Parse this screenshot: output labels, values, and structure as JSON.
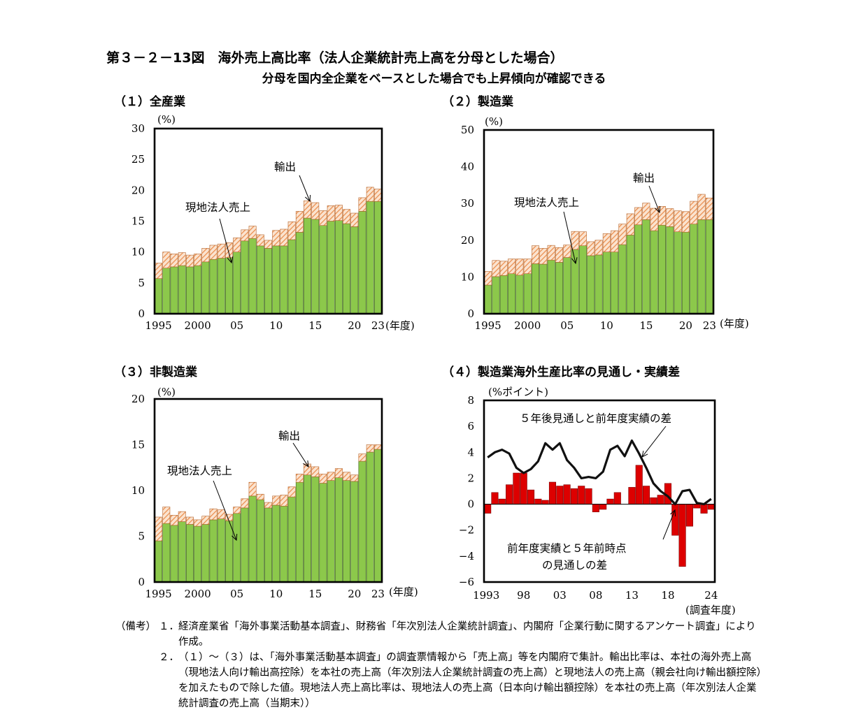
{
  "title": "第３－２－13図　海外売上高比率（法人企業統計売上高を分母とした場合）",
  "subtitle": "分母を国内全企業をベースとした場合でも上昇傾向が確認できる",
  "panels": [
    {
      "title": "（１）全産業",
      "unit": "(%)",
      "xunit": "(年度)"
    },
    {
      "title": "（２）製造業",
      "unit": "(%)",
      "xunit": "(年度)"
    },
    {
      "title": "（３）非製造業",
      "unit": "(%)",
      "xunit": "(年度)"
    },
    {
      "title": "（４）製造業海外生産比率の見通し・実績差",
      "unit": "(%ポイント)",
      "xunit": "(調査年度)"
    }
  ],
  "chart_data": [
    {
      "type": "bar",
      "stacked": true,
      "categories": [
        "1995",
        "96",
        "97",
        "98",
        "99",
        "2000",
        "01",
        "02",
        "03",
        "04",
        "05",
        "06",
        "07",
        "08",
        "09",
        "10",
        "11",
        "12",
        "13",
        "14",
        "15",
        "16",
        "17",
        "18",
        "19",
        "20",
        "21",
        "22",
        "23"
      ],
      "tick_labels": [
        "1995",
        "2000",
        "05",
        "10",
        "15",
        "20",
        "23"
      ],
      "ylim": [
        0,
        30
      ],
      "yticks": [
        0,
        5,
        10,
        15,
        20,
        25,
        30
      ],
      "series": [
        {
          "name": "現地法人売上",
          "color": "#8cc84b",
          "values": [
            5.7,
            7.4,
            7.6,
            7.8,
            7.6,
            7.8,
            8.4,
            8.8,
            9.0,
            9.1,
            10.0,
            11.8,
            12.2,
            11.0,
            10.6,
            11.0,
            11.0,
            12.0,
            13.2,
            15.5,
            15.3,
            14.3,
            15.0,
            15.1,
            14.6,
            14.1,
            16.6,
            18.2,
            18.2
          ]
        },
        {
          "name": "輸出",
          "color": "#f2b98a",
          "values": [
            2.5,
            2.6,
            2.1,
            2.1,
            1.9,
            1.9,
            2.2,
            2.3,
            2.3,
            2.4,
            2.3,
            1.8,
            2.0,
            1.8,
            1.3,
            2.5,
            2.7,
            2.9,
            3.4,
            2.8,
            2.7,
            2.4,
            2.5,
            2.5,
            2.3,
            2.2,
            2.2,
            2.3,
            2.0
          ]
        }
      ],
      "annotations": [
        "輸出",
        "現地法人売上"
      ]
    },
    {
      "type": "bar",
      "stacked": true,
      "categories": [
        "1995",
        "96",
        "97",
        "98",
        "99",
        "2000",
        "01",
        "02",
        "03",
        "04",
        "05",
        "06",
        "07",
        "08",
        "09",
        "10",
        "11",
        "12",
        "13",
        "14",
        "15",
        "16",
        "17",
        "18",
        "19",
        "20",
        "21",
        "22",
        "23"
      ],
      "tick_labels": [
        "1995",
        "2000",
        "05",
        "10",
        "15",
        "20",
        "23"
      ],
      "ylim": [
        0,
        50
      ],
      "yticks": [
        0,
        10,
        20,
        30,
        40,
        50
      ],
      "series": [
        {
          "name": "現地法人売上",
          "color": "#8cc84b",
          "values": [
            7.8,
            10.1,
            10.4,
            10.9,
            10.5,
            10.9,
            13.6,
            13.5,
            14.6,
            14.0,
            15.3,
            17.5,
            18.5,
            15.8,
            16.0,
            16.8,
            16.8,
            18.8,
            21.4,
            24.2,
            25.6,
            22.6,
            24.1,
            23.7,
            22.3,
            22.2,
            24.4,
            25.6,
            25.6
          ]
        },
        {
          "name": "輸出",
          "color": "#f2b98a",
          "values": [
            3.7,
            4.4,
            3.9,
            4.0,
            4.4,
            4.0,
            4.9,
            4.3,
            4.0,
            4.0,
            3.4,
            4.9,
            3.8,
            3.8,
            4.0,
            5.0,
            5.8,
            5.6,
            5.8,
            4.7,
            4.5,
            6.1,
            5.1,
            4.9,
            5.7,
            5.6,
            6.2,
            6.9,
            5.9
          ]
        }
      ],
      "annotations": [
        "輸出",
        "現地法人売上"
      ]
    },
    {
      "type": "bar",
      "stacked": true,
      "categories": [
        "1995",
        "96",
        "97",
        "98",
        "99",
        "2000",
        "01",
        "02",
        "03",
        "04",
        "05",
        "06",
        "07",
        "08",
        "09",
        "10",
        "11",
        "12",
        "13",
        "14",
        "15",
        "16",
        "17",
        "18",
        "19",
        "20",
        "21",
        "22",
        "23"
      ],
      "tick_labels": [
        "1995",
        "2000",
        "05",
        "10",
        "15",
        "20",
        "23"
      ],
      "ylim": [
        0,
        20
      ],
      "yticks": [
        0,
        5,
        10,
        15,
        20
      ],
      "series": [
        {
          "name": "現地法人売上",
          "color": "#8cc84b",
          "values": [
            4.5,
            6.4,
            6.2,
            6.6,
            6.3,
            6.1,
            6.3,
            6.8,
            6.9,
            6.7,
            7.5,
            8.1,
            9.4,
            9.0,
            8.1,
            8.4,
            8.3,
            9.3,
            10.9,
            11.7,
            11.5,
            10.8,
            11.1,
            11.4,
            11.1,
            11.0,
            13.2,
            14.2,
            14.5
          ]
        },
        {
          "name": "輸出",
          "color": "#f2b98a",
          "values": [
            2.6,
            1.8,
            1.1,
            1.1,
            0.8,
            0.7,
            0.9,
            1.2,
            1.0,
            0.7,
            0.7,
            1.0,
            1.5,
            0.6,
            0.6,
            1.0,
            1.2,
            1.1,
            0.9,
            1.2,
            1.1,
            1.0,
            0.9,
            1.0,
            0.9,
            0.7,
            0.8,
            0.8,
            0.5
          ]
        }
      ],
      "annotations": [
        "輸出",
        "現地法人売上"
      ]
    },
    {
      "type": "bar+line",
      "categories": [
        "1993",
        "94",
        "95",
        "96",
        "97",
        "98",
        "99",
        "2000",
        "01",
        "02",
        "03",
        "04",
        "05",
        "06",
        "07",
        "08",
        "09",
        "10",
        "11",
        "12",
        "13",
        "14",
        "15",
        "16",
        "17",
        "18",
        "19",
        "20",
        "21",
        "22",
        "23",
        "24"
      ],
      "tick_labels": [
        "1993",
        "98",
        "03",
        "08",
        "13",
        "18",
        "24"
      ],
      "ylim": [
        -6,
        8
      ],
      "yticks": [
        -6,
        -4,
        -2,
        0,
        2,
        4,
        6,
        8
      ],
      "series": [
        {
          "name": "前年度実績と５年前時点の見通しの差",
          "type": "bar",
          "color": "#dd0000",
          "values": [
            -0.7,
            0.9,
            0.4,
            1.5,
            2.4,
            2.4,
            1.1,
            0.4,
            0.3,
            1.7,
            1.4,
            1.5,
            1.2,
            1.4,
            1.2,
            -0.6,
            -0.4,
            0.4,
            0.9,
            0,
            1.3,
            3.0,
            1.4,
            0.5,
            0.7,
            1.6,
            -2.4,
            -4.8,
            -1.7,
            -0.3,
            -0.7,
            -0.4
          ]
        },
        {
          "name": "５年後見通しと前年度実績の差",
          "type": "line",
          "color": "#111111",
          "values": [
            3.6,
            4.0,
            4.2,
            3.9,
            2.8,
            2.4,
            2.7,
            3.3,
            4.7,
            4.2,
            4.7,
            3.4,
            2.8,
            2.0,
            2.1,
            2.0,
            2.5,
            4.2,
            4.5,
            3.7,
            4.9,
            3.9,
            2.8,
            1.6,
            1.0,
            0.6,
            0,
            1.0,
            1.1,
            0.1,
            0,
            0.4
          ]
        }
      ],
      "annotations": [
        "５年後見通しと前年度実績の差",
        "前年度実績と５年前時点",
        "の見通しの差"
      ]
    }
  ],
  "notes": {
    "head": "（備考）",
    "items": [
      {
        "num": "１．",
        "text": "経済産業省「海外事業活動基本調査」、財務省「年次別法人企業統計調査」、内閣府「企業行動に関するアンケート調査」により作成。"
      },
      {
        "num": "２．",
        "text": "（１）～（３）は、「海外事業活動基本調査」の調査票情報から「売上高」等を内閣府で集計。輸出比率は、本社の海外売上高（現地法人向け輸出高控除）を本社の売上高（年次別法人企業統計調査の売上高）と現地法人の売上高（親会社向け輸出額控除）を加えたもので除した値。現地法人売上高比率は、現地法人の売上高（日本向け輸出額控除）を本社の売上高（年次別法人企業統計調査の売上高（当期末））"
      }
    ]
  }
}
